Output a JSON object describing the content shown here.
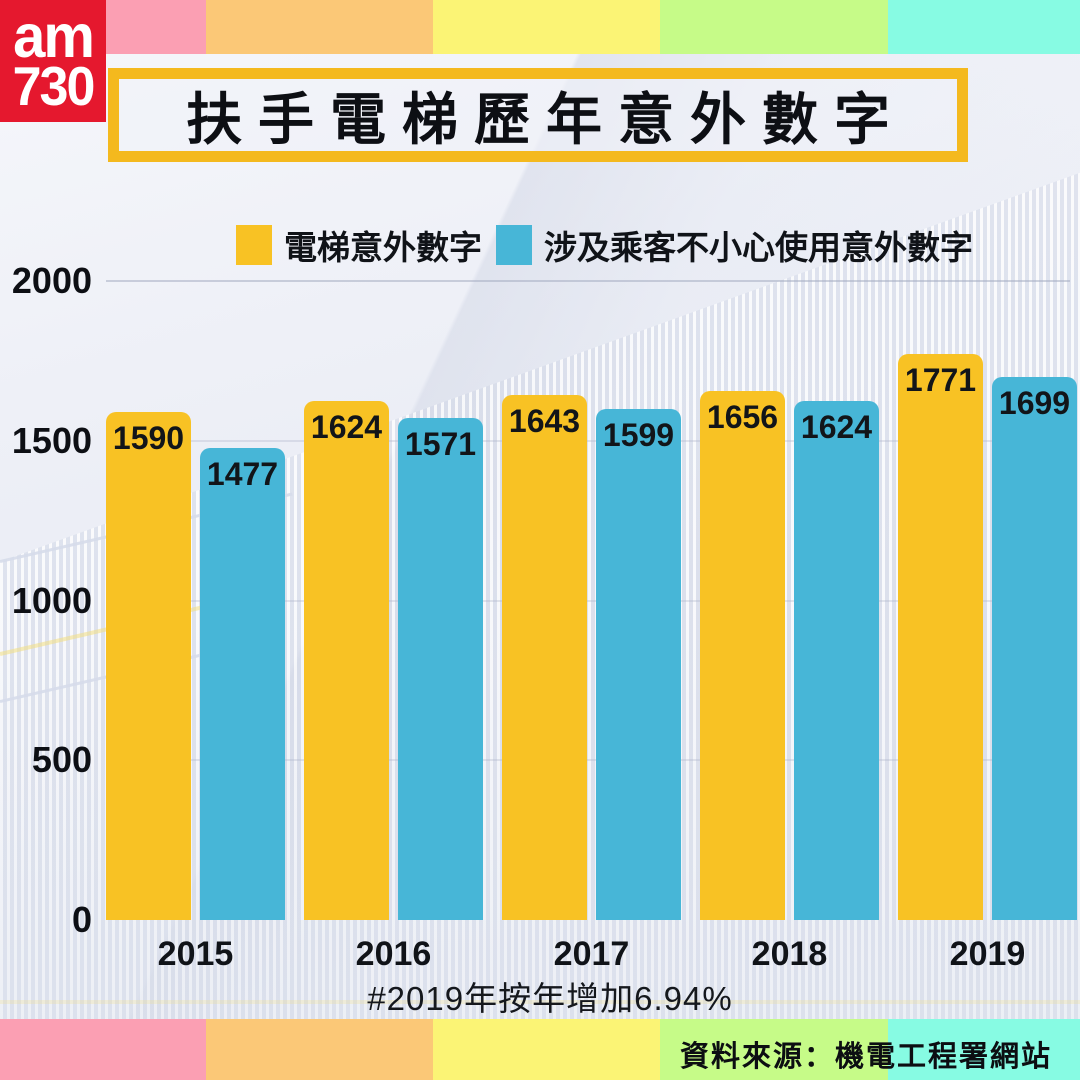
{
  "logo": {
    "line1": "am",
    "line2": "730",
    "bg_color": "#E5182E"
  },
  "header": {
    "title": "扶手電梯歷年意外數字",
    "frame_color": "#F4B91E"
  },
  "legend": {
    "items": [
      {
        "label": "電梯意外數字",
        "color": "#F8C224"
      },
      {
        "label": "涉及乘客不小心使用意外數字",
        "color": "#47B6D7"
      }
    ]
  },
  "chart_data": {
    "type": "bar",
    "title": "扶手電梯歷年意外數字",
    "categories": [
      "2015",
      "2016",
      "2017",
      "2018",
      "2019"
    ],
    "series": [
      {
        "name": "電梯意外數字",
        "color": "#F8C224",
        "values": [
          1590,
          1624,
          1643,
          1656,
          1771
        ]
      },
      {
        "name": "涉及乘客不小心使用意外數字",
        "color": "#47B6D7",
        "values": [
          1477,
          1571,
          1599,
          1624,
          1699
        ]
      }
    ],
    "xlabel": "",
    "ylabel": "",
    "ylim": [
      0,
      2000
    ],
    "yticks": [
      0,
      500,
      1000,
      1500,
      2000
    ],
    "grid": true,
    "legend_position": "top",
    "value_labels": "inside-top"
  },
  "footnote": "#2019年按年增加6.94%",
  "source": "資料來源：機電工程署網站",
  "stripes": {
    "colors": [
      "#FB9FB3",
      "#FBC877",
      "#FBF475",
      "#C6FB88",
      "#87FBE3"
    ],
    "widths_pct": [
      19.1,
      21.0,
      21.0,
      21.1,
      17.8
    ]
  },
  "style": {
    "gridline_color": "rgba(160,167,190,0.5)",
    "gridline_faint_color": "rgba(170,177,198,0.32)"
  }
}
